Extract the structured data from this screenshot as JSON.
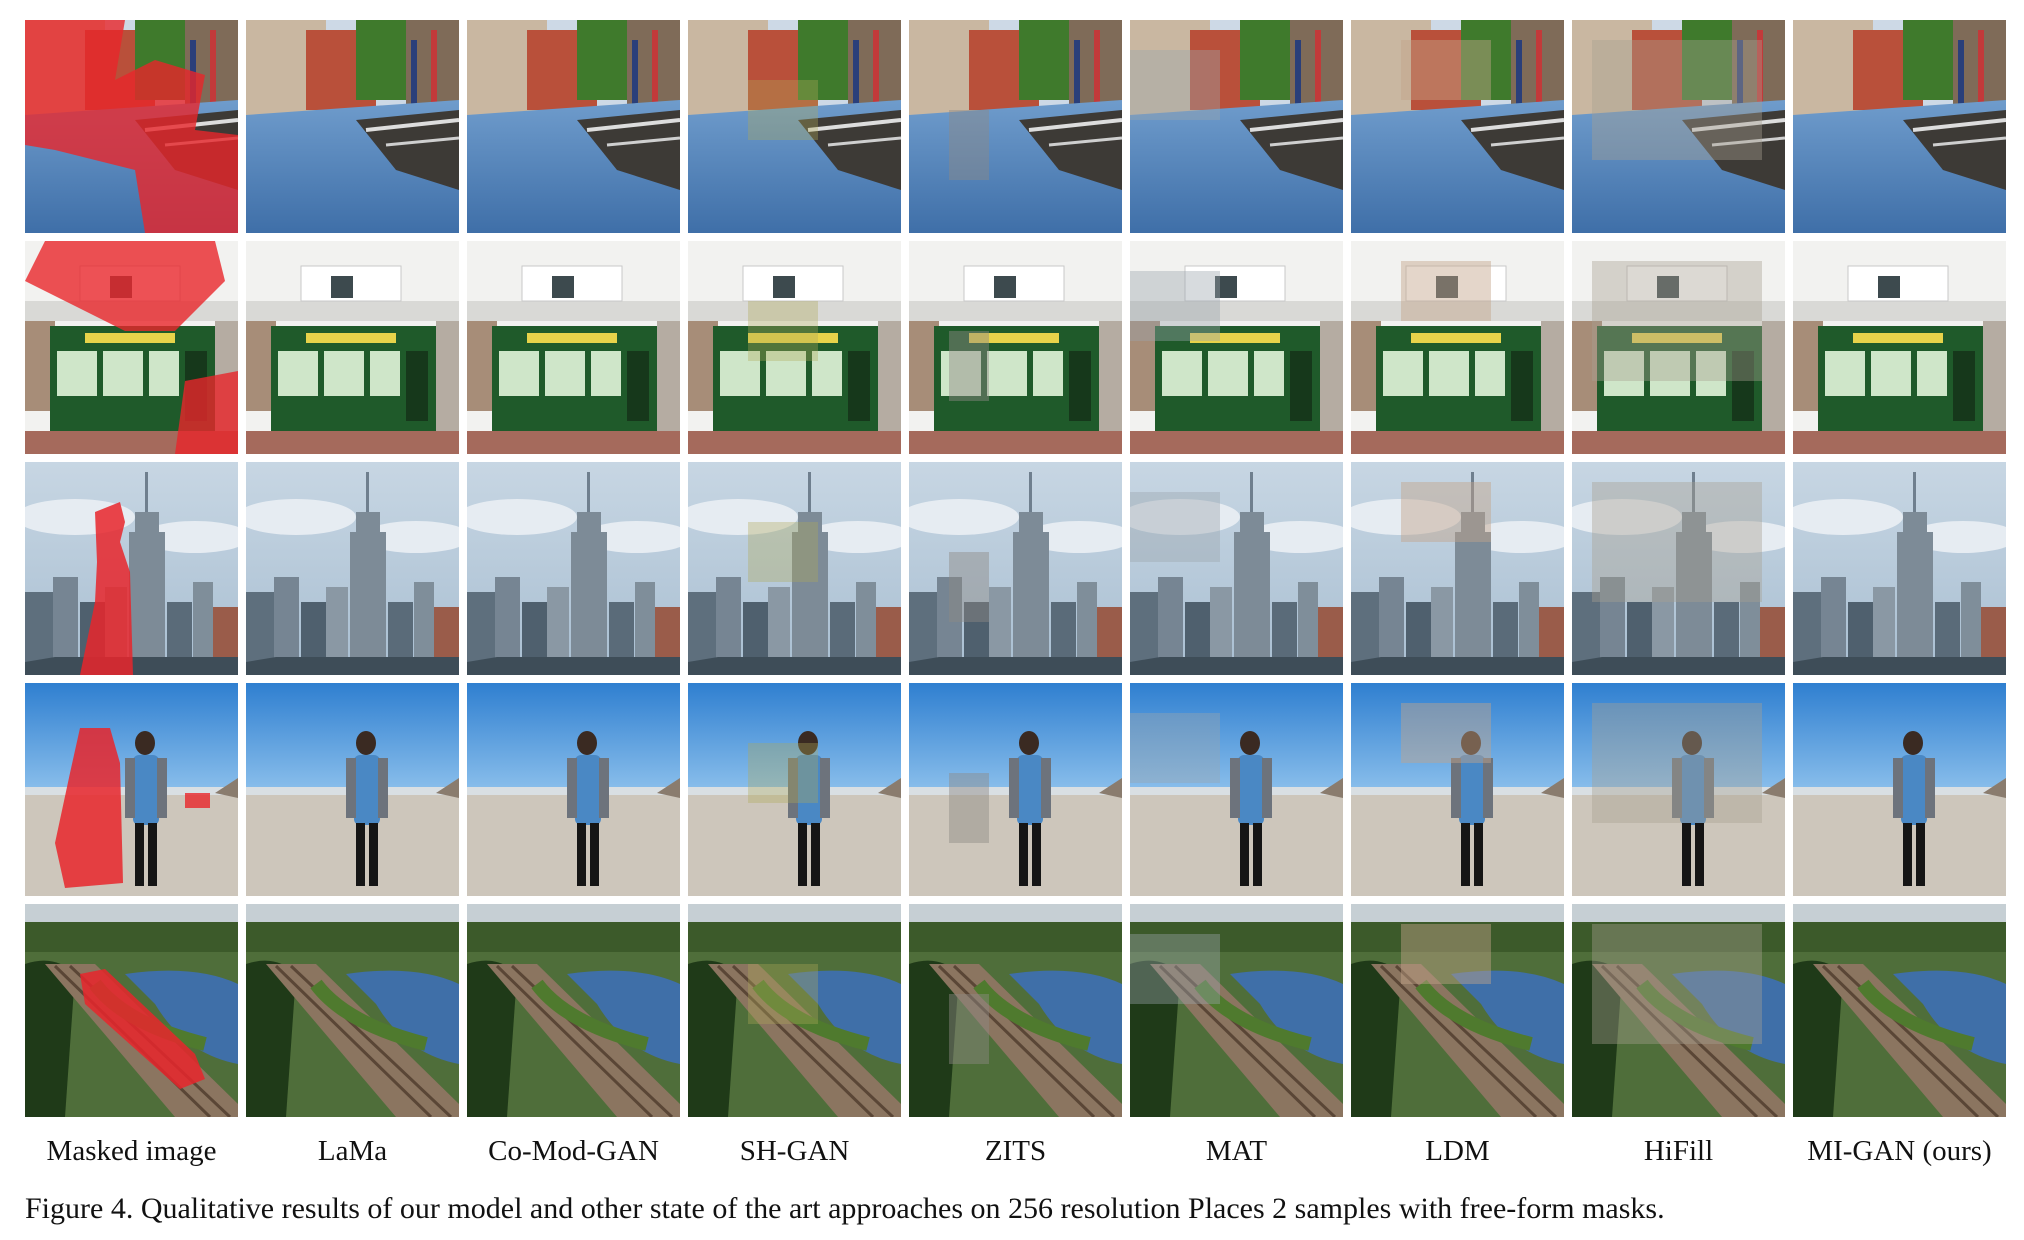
{
  "figure": {
    "caption": "Figure 4. Qualitative results of our model and other state of the art approaches on 256 resolution Places 2 samples with free-form masks.",
    "columns": [
      {
        "label": "Masked image"
      },
      {
        "label": "LaMa"
      },
      {
        "label": "Co-Mod-GAN"
      },
      {
        "label": "SH-GAN"
      },
      {
        "label": "ZITS"
      },
      {
        "label": "MAT"
      },
      {
        "label": "LDM"
      },
      {
        "label": "HiFill"
      },
      {
        "label": "MI-GAN (ours)"
      }
    ],
    "rows": [
      {
        "scene": "canal"
      },
      {
        "scene": "shopfront"
      },
      {
        "scene": "skyline"
      },
      {
        "scene": "beach"
      },
      {
        "scene": "railway"
      }
    ],
    "colors": {
      "mask": "#e8262b",
      "sky": "#8fb3d9",
      "water": "#3f6fa8",
      "grass": "#4f7a2e"
    }
  }
}
